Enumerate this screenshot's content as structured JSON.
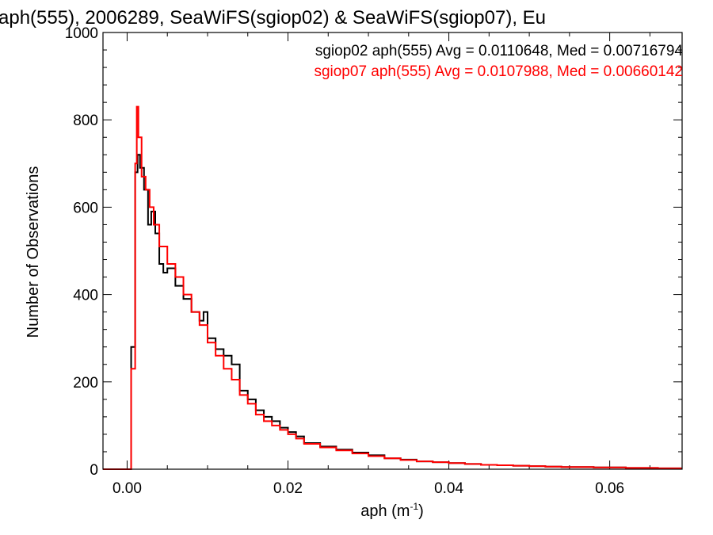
{
  "chart_data": {
    "type": "histogram",
    "title": "aph(555), 2006289, SeaWiFS(sgiop02) & SeaWiFS(sgiop07), Eu",
    "xlabel": "aph (m",
    "xlabel_sup": "-1",
    "xlabel_close": ")",
    "ylabel": "Number of Observations",
    "xlim": [
      -0.003,
      0.069
    ],
    "ylim": [
      0,
      1000
    ],
    "xticks": [
      0.0,
      0.02,
      0.04,
      0.06
    ],
    "xtick_labels": [
      "0.00",
      "0.02",
      "0.04",
      "0.06"
    ],
    "yticks": [
      0,
      200,
      400,
      600,
      800,
      1000
    ],
    "ytick_labels": [
      "0",
      "200",
      "400",
      "600",
      "800",
      "1000"
    ],
    "legend_position": "top-right",
    "series": [
      {
        "name": "sgiop02 aph(555) Avg = 0.0110648, Med = 0.00716794",
        "color": "#000000",
        "points": [
          [
            -0.003,
            0
          ],
          [
            0.0,
            0
          ],
          [
            0.0005,
            280
          ],
          [
            0.001,
            680
          ],
          [
            0.0013,
            720
          ],
          [
            0.0016,
            690
          ],
          [
            0.0021,
            640
          ],
          [
            0.0026,
            560
          ],
          [
            0.003,
            590
          ],
          [
            0.0035,
            540
          ],
          [
            0.004,
            470
          ],
          [
            0.0045,
            450
          ],
          [
            0.005,
            460
          ],
          [
            0.006,
            420
          ],
          [
            0.007,
            390
          ],
          [
            0.008,
            360
          ],
          [
            0.009,
            340
          ],
          [
            0.0095,
            360
          ],
          [
            0.01,
            300
          ],
          [
            0.011,
            275
          ],
          [
            0.012,
            260
          ],
          [
            0.013,
            240
          ],
          [
            0.014,
            180
          ],
          [
            0.015,
            160
          ],
          [
            0.016,
            135
          ],
          [
            0.017,
            120
          ],
          [
            0.018,
            110
          ],
          [
            0.019,
            95
          ],
          [
            0.02,
            85
          ],
          [
            0.021,
            75
          ],
          [
            0.022,
            60
          ],
          [
            0.024,
            52
          ],
          [
            0.026,
            45
          ],
          [
            0.028,
            38
          ],
          [
            0.03,
            32
          ],
          [
            0.032,
            25
          ],
          [
            0.034,
            22
          ],
          [
            0.036,
            18
          ],
          [
            0.038,
            16
          ],
          [
            0.04,
            14
          ],
          [
            0.042,
            12
          ],
          [
            0.044,
            10
          ],
          [
            0.046,
            9
          ],
          [
            0.048,
            8
          ],
          [
            0.05,
            7
          ],
          [
            0.052,
            6
          ],
          [
            0.054,
            5
          ],
          [
            0.056,
            5
          ],
          [
            0.058,
            4
          ],
          [
            0.06,
            4
          ],
          [
            0.062,
            3
          ],
          [
            0.064,
            3
          ],
          [
            0.066,
            2
          ],
          [
            0.068,
            2
          ],
          [
            0.069,
            2
          ]
        ]
      },
      {
        "name": "sgiop07 aph(555) Avg = 0.0107988, Med = 0.00660142",
        "color": "#ff0000",
        "points": [
          [
            -0.003,
            0
          ],
          [
            0.0,
            0
          ],
          [
            0.0005,
            230
          ],
          [
            0.001,
            700
          ],
          [
            0.0012,
            830
          ],
          [
            0.0014,
            760
          ],
          [
            0.0018,
            670
          ],
          [
            0.0023,
            640
          ],
          [
            0.0028,
            600
          ],
          [
            0.0033,
            560
          ],
          [
            0.004,
            510
          ],
          [
            0.005,
            470
          ],
          [
            0.006,
            440
          ],
          [
            0.007,
            400
          ],
          [
            0.008,
            360
          ],
          [
            0.009,
            330
          ],
          [
            0.01,
            290
          ],
          [
            0.011,
            260
          ],
          [
            0.012,
            230
          ],
          [
            0.013,
            205
          ],
          [
            0.014,
            170
          ],
          [
            0.015,
            150
          ],
          [
            0.016,
            125
          ],
          [
            0.017,
            110
          ],
          [
            0.018,
            100
          ],
          [
            0.019,
            90
          ],
          [
            0.02,
            80
          ],
          [
            0.021,
            70
          ],
          [
            0.022,
            58
          ],
          [
            0.024,
            50
          ],
          [
            0.026,
            43
          ],
          [
            0.028,
            36
          ],
          [
            0.03,
            30
          ],
          [
            0.032,
            25
          ],
          [
            0.034,
            21
          ],
          [
            0.036,
            18
          ],
          [
            0.038,
            16
          ],
          [
            0.04,
            14
          ],
          [
            0.042,
            12
          ],
          [
            0.044,
            10
          ],
          [
            0.046,
            9
          ],
          [
            0.048,
            8
          ],
          [
            0.05,
            7
          ],
          [
            0.052,
            6
          ],
          [
            0.054,
            5
          ],
          [
            0.056,
            5
          ],
          [
            0.058,
            4
          ],
          [
            0.06,
            4
          ],
          [
            0.062,
            3
          ],
          [
            0.064,
            3
          ],
          [
            0.066,
            2
          ],
          [
            0.068,
            2
          ],
          [
            0.069,
            2
          ]
        ]
      }
    ]
  }
}
